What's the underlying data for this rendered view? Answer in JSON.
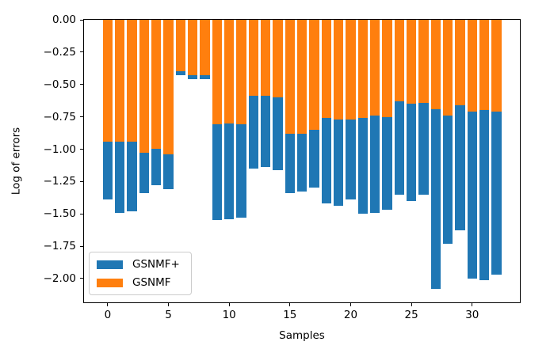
{
  "chart_data": {
    "type": "bar",
    "stacked": true,
    "orientation": "vertical",
    "title": "",
    "xlabel": "Samples",
    "ylabel": "Log of errors",
    "grid": false,
    "xlim": [
      -1.95,
      33.93
    ],
    "ylim": [
      -2.184,
      0
    ],
    "bar_width": 0.8,
    "x": [
      0,
      1,
      2,
      3,
      4,
      5,
      6,
      7,
      8,
      9,
      10,
      11,
      12,
      13,
      14,
      15,
      16,
      17,
      18,
      19,
      20,
      21,
      22,
      23,
      24,
      25,
      26,
      27,
      28,
      29,
      30,
      31,
      32
    ],
    "stacking_note": "GSNMF (orange) segment spans from 0 down to its value; GSNMF+ (blue) segment is stacked below it; bar bottom = GSNMF + GSNMF+ (see stack_totals)",
    "series": [
      {
        "name": "GSNMF+",
        "color": "#1f77b4",
        "values": [
          -0.45,
          -0.55,
          -0.54,
          -0.31,
          -0.28,
          -0.27,
          -0.03,
          -0.03,
          -0.03,
          -0.74,
          -0.74,
          -0.72,
          -0.56,
          -0.55,
          -0.56,
          -0.46,
          -0.45,
          -0.45,
          -0.66,
          -0.67,
          -0.62,
          -0.74,
          -0.75,
          -0.72,
          -0.72,
          -0.75,
          -0.71,
          -1.39,
          -0.99,
          -0.97,
          -1.29,
          -1.31,
          -1.26
        ]
      },
      {
        "name": "GSNMF",
        "color": "#ff7f0e",
        "values": [
          -0.94,
          -0.94,
          -0.94,
          -1.03,
          -1.0,
          -1.04,
          -0.4,
          -0.43,
          -0.43,
          -0.81,
          -0.8,
          -0.81,
          -0.59,
          -0.59,
          -0.6,
          -0.88,
          -0.88,
          -0.85,
          -0.76,
          -0.77,
          -0.77,
          -0.76,
          -0.74,
          -0.75,
          -0.63,
          -0.65,
          -0.64,
          -0.69,
          -0.74,
          -0.66,
          -0.71,
          -0.7,
          -0.71
        ]
      }
    ],
    "stack_totals": [
      -1.39,
      -1.49,
      -1.48,
      -1.34,
      -1.28,
      -1.31,
      -0.43,
      -0.46,
      -0.46,
      -1.55,
      -1.54,
      -1.53,
      -1.15,
      -1.14,
      -1.16,
      -1.34,
      -1.33,
      -1.3,
      -1.42,
      -1.44,
      -1.39,
      -1.5,
      -1.49,
      -1.47,
      -1.35,
      -1.4,
      -1.35,
      -2.08,
      -1.73,
      -1.63,
      -2.0,
      -2.01,
      -1.97
    ],
    "yticks": [
      {
        "value": 0,
        "label": "0.00"
      },
      {
        "value": -0.25,
        "label": "−0.25"
      },
      {
        "value": -0.5,
        "label": "−0.50"
      },
      {
        "value": -0.75,
        "label": "−0.75"
      },
      {
        "value": -1.0,
        "label": "−1.00"
      },
      {
        "value": -1.25,
        "label": "−1.25"
      },
      {
        "value": -1.5,
        "label": "−1.50"
      },
      {
        "value": -1.75,
        "label": "−1.75"
      },
      {
        "value": -2.0,
        "label": "−2.00"
      }
    ],
    "xticks": [
      {
        "value": 0,
        "label": "0"
      },
      {
        "value": 5,
        "label": "5"
      },
      {
        "value": 10,
        "label": "10"
      },
      {
        "value": 15,
        "label": "15"
      },
      {
        "value": 20,
        "label": "20"
      },
      {
        "value": 25,
        "label": "25"
      },
      {
        "value": 30,
        "label": "30"
      }
    ],
    "legend": {
      "position": "lower left",
      "items": [
        {
          "label": "GSNMF+",
          "color": "#1f77b4"
        },
        {
          "label": "GSNMF",
          "color": "#ff7f0e"
        }
      ]
    }
  }
}
